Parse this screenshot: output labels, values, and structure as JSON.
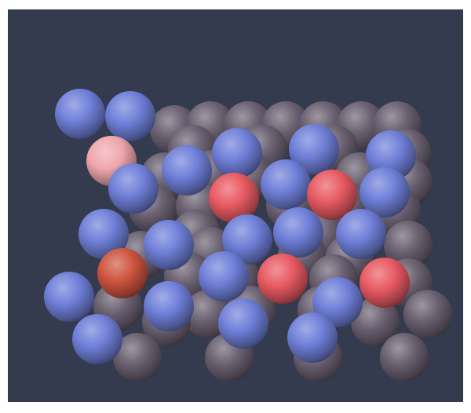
{
  "image": {
    "background_color": "#343b4e",
    "frame_color": "#ffffff",
    "sphere_colors": {
      "dark": "#6a6070",
      "blue": "#6f7fd8",
      "red": "#e85a62",
      "pink": "#f0a7ae",
      "rust": "#cf5540"
    }
  }
}
